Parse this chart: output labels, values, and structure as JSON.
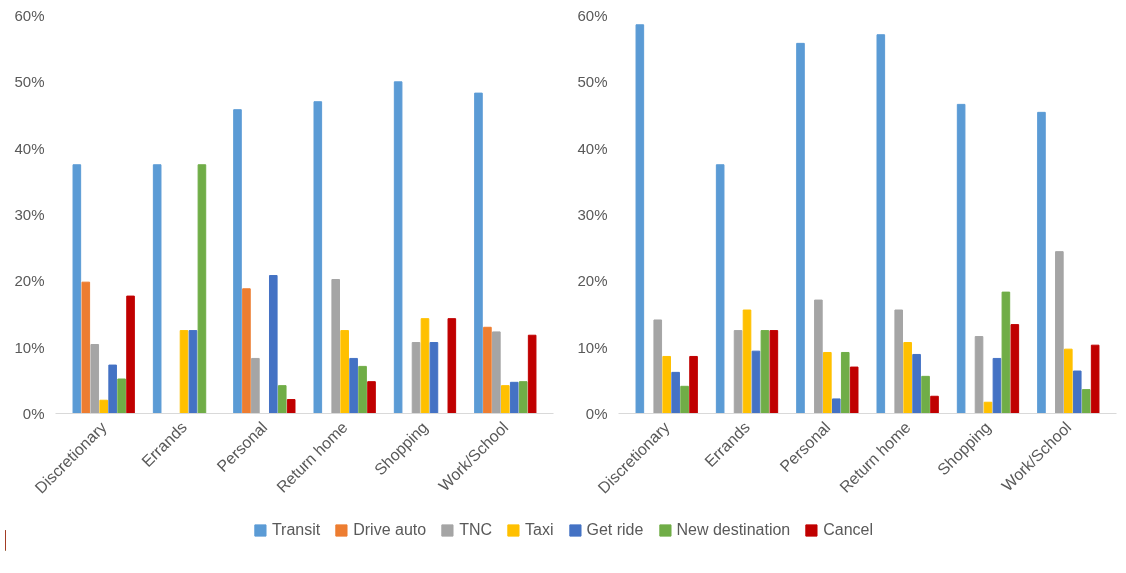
{
  "chart_data": [
    {
      "type": "bar",
      "categories": [
        "Discretionary",
        "Errands",
        "Personal",
        "Return home",
        "Shopping",
        "Work/School"
      ],
      "series": [
        {
          "name": "Transit",
          "color": "#5b9bd5",
          "values": [
            37.5,
            37.5,
            45.8,
            47.0,
            50.0,
            48.3
          ]
        },
        {
          "name": "Drive auto",
          "color": "#ed7d31",
          "values": [
            19.8,
            0,
            18.8,
            0,
            0,
            13.0
          ]
        },
        {
          "name": "TNC",
          "color": "#a5a5a5",
          "values": [
            10.4,
            0,
            8.3,
            20.2,
            10.7,
            12.3
          ]
        },
        {
          "name": "Taxi",
          "color": "#ffc000",
          "values": [
            2.0,
            12.5,
            0,
            12.5,
            14.3,
            4.2
          ]
        },
        {
          "name": "Get ride",
          "color": "#4472c4",
          "values": [
            7.3,
            12.5,
            20.8,
            8.3,
            10.7,
            4.7
          ]
        },
        {
          "name": "New destination",
          "color": "#70ad47",
          "values": [
            5.2,
            37.5,
            4.2,
            7.1,
            0,
            4.8
          ]
        },
        {
          "name": "Cancel",
          "color": "#c00000",
          "values": [
            17.7,
            0,
            2.1,
            4.8,
            14.3,
            11.8
          ]
        }
      ],
      "ylim": [
        0,
        60
      ],
      "yticks": [
        {
          "value": 0,
          "label": "0%"
        },
        {
          "value": 10,
          "label": "10%"
        },
        {
          "value": 20,
          "label": "20%"
        },
        {
          "value": 30,
          "label": "30%"
        },
        {
          "value": 40,
          "label": "40%"
        },
        {
          "value": 50,
          "label": "50%"
        },
        {
          "value": 60,
          "label": "60%"
        }
      ],
      "grid": false,
      "legend": "bottom"
    },
    {
      "type": "bar",
      "categories": [
        "Discretionary",
        "Errands",
        "Personal",
        "Return home",
        "Shopping",
        "Work/School"
      ],
      "series": [
        {
          "color": "#5b9bd5",
          "values": [
            58.6,
            37.5,
            55.8,
            57.1,
            46.6,
            45.4
          ]
        },
        {
          "color": "#ed7d31",
          "values": [
            0,
            0,
            0,
            0,
            0,
            0
          ]
        },
        {
          "color": "#a5a5a5",
          "values": [
            14.1,
            12.5,
            17.1,
            15.6,
            11.6,
            24.4
          ]
        },
        {
          "color": "#ffc000",
          "values": [
            8.6,
            15.6,
            9.2,
            10.7,
            1.7,
            9.7
          ]
        },
        {
          "color": "#4472c4",
          "values": [
            6.2,
            9.4,
            2.2,
            8.9,
            8.3,
            6.4
          ]
        },
        {
          "color": "#70ad47",
          "values": [
            4.1,
            12.5,
            9.2,
            5.6,
            18.3,
            3.6
          ]
        },
        {
          "color": "#c00000",
          "values": [
            8.6,
            12.5,
            7.0,
            2.6,
            13.4,
            10.3
          ]
        }
      ],
      "ylim": [
        0,
        60
      ],
      "yticks": [
        {
          "value": 0,
          "label": "0%"
        },
        {
          "value": 10,
          "label": "10%"
        },
        {
          "value": 20,
          "label": "20%"
        },
        {
          "value": 30,
          "label": "30%"
        },
        {
          "value": 40,
          "label": "40%"
        },
        {
          "value": 50,
          "label": "50%"
        },
        {
          "value": 60,
          "label": "60%"
        }
      ],
      "grid": false
    }
  ]
}
